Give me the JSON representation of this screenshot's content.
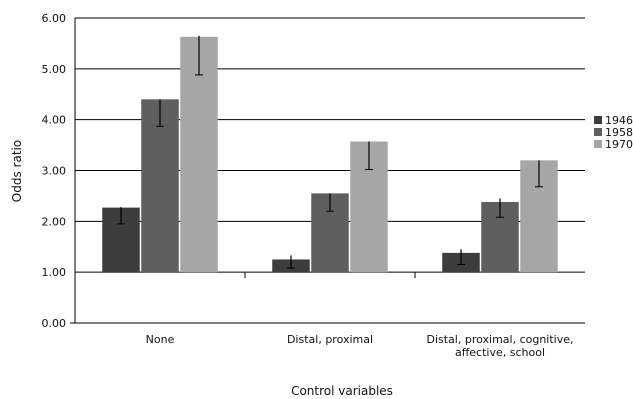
{
  "chart_data": {
    "type": "bar",
    "title": "",
    "xlabel": "Control variables",
    "ylabel": "Odds ratio",
    "categories": [
      [
        "None"
      ],
      [
        "Distal, proximal"
      ],
      [
        "Distal, proximal, cognitive,",
        "affective, school"
      ]
    ],
    "ylim": [
      0,
      6
    ],
    "yticks": [
      "0.00",
      "1.00",
      "2.00",
      "3.00",
      "4.00",
      "5.00",
      "6.00"
    ],
    "grid": true,
    "legend_position": "right",
    "error_bars": true,
    "series": [
      {
        "name": "1946",
        "color": "#3d3d3d",
        "values": [
          2.27,
          1.25,
          1.38
        ],
        "error_low": [
          1.95,
          1.08,
          1.15
        ],
        "error_high": [
          2.28,
          1.33,
          1.45
        ]
      },
      {
        "name": "1958",
        "color": "#5f5f5f",
        "values": [
          4.4,
          2.55,
          2.38
        ],
        "error_low": [
          3.87,
          2.2,
          2.08
        ],
        "error_high": [
          4.4,
          2.55,
          2.45
        ]
      },
      {
        "name": "1970",
        "color": "#a6a6a6",
        "values": [
          5.63,
          3.57,
          3.2
        ],
        "error_low": [
          4.88,
          3.02,
          2.68
        ],
        "error_high": [
          5.65,
          3.57,
          3.2
        ]
      }
    ]
  }
}
